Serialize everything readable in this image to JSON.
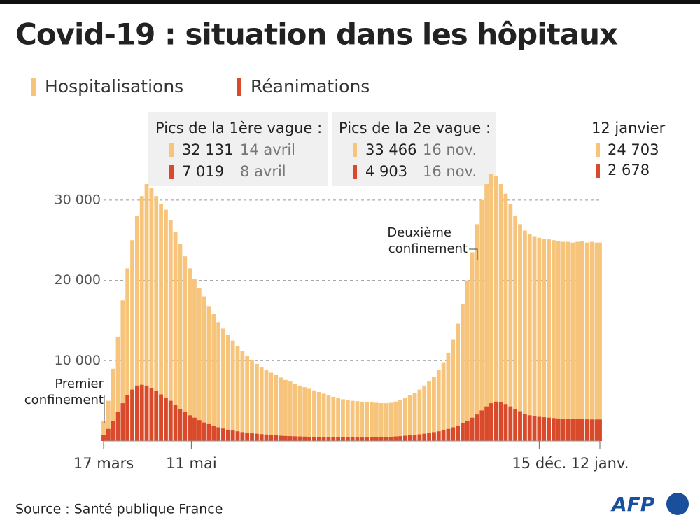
{
  "chart_data": {
    "type": "bar",
    "title": "Covid-19 : situation dans les hôpitaux",
    "x": [
      0,
      3,
      6,
      9,
      12,
      15,
      18,
      21,
      24,
      27,
      30,
      33,
      36,
      39,
      42,
      45,
      48,
      51,
      54,
      57,
      60,
      63,
      66,
      69,
      72,
      75,
      78,
      81,
      84,
      87,
      90,
      93,
      96,
      99,
      102,
      105,
      108,
      111,
      114,
      117,
      120,
      123,
      126,
      129,
      132,
      135,
      138,
      141,
      144,
      147,
      150,
      153,
      156,
      159,
      162,
      165,
      168,
      171,
      174,
      177,
      180,
      183,
      186,
      189,
      192,
      195,
      198,
      201,
      204,
      207,
      210,
      213,
      216,
      219,
      222,
      225,
      228,
      231,
      234,
      237,
      240,
      243,
      246,
      249,
      252,
      255,
      258,
      261,
      264,
      267,
      270,
      273,
      276,
      279,
      282,
      285,
      288,
      291,
      294,
      297,
      300,
      303,
      306,
      309,
      311
    ],
    "xlim": [
      0,
      311
    ],
    "xticks": [
      {
        "value": 0,
        "label": "17 mars"
      },
      {
        "value": 55,
        "label": "11 mai"
      },
      {
        "value": 273,
        "label": "15 déc."
      },
      {
        "value": 311,
        "label": "12 janv."
      }
    ],
    "ylim": [
      0,
      35000
    ],
    "yticks": [
      {
        "value": 10000,
        "label": "10 000"
      },
      {
        "value": 20000,
        "label": "20 000"
      },
      {
        "value": 30000,
        "label": "30 000"
      }
    ],
    "grid": true,
    "series": [
      {
        "name": "Hospitalisations",
        "color": "#f7c47c",
        "values": [
          2500,
          5000,
          9000,
          13000,
          17500,
          21500,
          25000,
          28000,
          30500,
          32000,
          31500,
          30500,
          29500,
          28800,
          27500,
          26000,
          24500,
          23000,
          21500,
          20200,
          19000,
          18000,
          16800,
          15800,
          14800,
          14000,
          13200,
          12500,
          11800,
          11200,
          10600,
          10100,
          9600,
          9200,
          8800,
          8500,
          8200,
          7900,
          7600,
          7400,
          7100,
          6900,
          6700,
          6500,
          6300,
          6100,
          5900,
          5700,
          5500,
          5350,
          5200,
          5100,
          5000,
          4950,
          4900,
          4850,
          4800,
          4750,
          4700,
          4700,
          4750,
          4900,
          5100,
          5400,
          5700,
          6000,
          6400,
          6900,
          7400,
          8000,
          8800,
          9800,
          11000,
          12600,
          14600,
          17000,
          20000,
          23500,
          27000,
          30000,
          32000,
          33300,
          33000,
          32000,
          30800,
          29500,
          28000,
          27000,
          26200,
          25800,
          25500,
          25300,
          25200,
          25100,
          25000,
          24900,
          24800,
          24800,
          24700,
          24800,
          24900,
          24700,
          24800,
          24700,
          24703
        ]
      },
      {
        "name": "Réanimations",
        "color": "#d94a2c",
        "values": [
          700,
          1500,
          2500,
          3600,
          4700,
          5700,
          6400,
          6900,
          7000,
          6900,
          6600,
          6200,
          5800,
          5400,
          5000,
          4500,
          4000,
          3600,
          3200,
          2900,
          2600,
          2300,
          2100,
          1900,
          1700,
          1550,
          1400,
          1300,
          1200,
          1100,
          1000,
          950,
          900,
          850,
          800,
          750,
          700,
          650,
          620,
          600,
          580,
          560,
          540,
          520,
          500,
          490,
          480,
          470,
          460,
          450,
          450,
          440,
          440,
          430,
          430,
          430,
          440,
          450,
          470,
          490,
          520,
          560,
          600,
          650,
          700,
          760,
          830,
          900,
          1000,
          1100,
          1200,
          1350,
          1500,
          1700,
          1900,
          2200,
          2500,
          2900,
          3300,
          3800,
          4300,
          4700,
          4900,
          4800,
          4600,
          4300,
          4000,
          3700,
          3400,
          3200,
          3100,
          3000,
          2950,
          2900,
          2850,
          2800,
          2780,
          2760,
          2750,
          2720,
          2700,
          2690,
          2680,
          2670,
          2678
        ]
      }
    ],
    "annotations": {
      "first_lockdown": [
        "Premier",
        "confinement"
      ],
      "second_lockdown": [
        "Deuxième",
        "confinement"
      ],
      "peaks": [
        {
          "title": "Pics de la 1ère vague :",
          "rows": [
            [
              "32 131",
              "14 avril"
            ],
            [
              "7 019",
              "8 avril"
            ]
          ]
        },
        {
          "title": "Pics de la 2e vague :",
          "rows": [
            [
              "33 466",
              "16 nov."
            ],
            [
              "4 903",
              "16 nov."
            ]
          ]
        }
      ],
      "latest": {
        "title": "12 janvier",
        "rows": [
          "24 703",
          "2 678"
        ]
      }
    },
    "source": "Source : Santé publique France",
    "logo": "AFP"
  }
}
